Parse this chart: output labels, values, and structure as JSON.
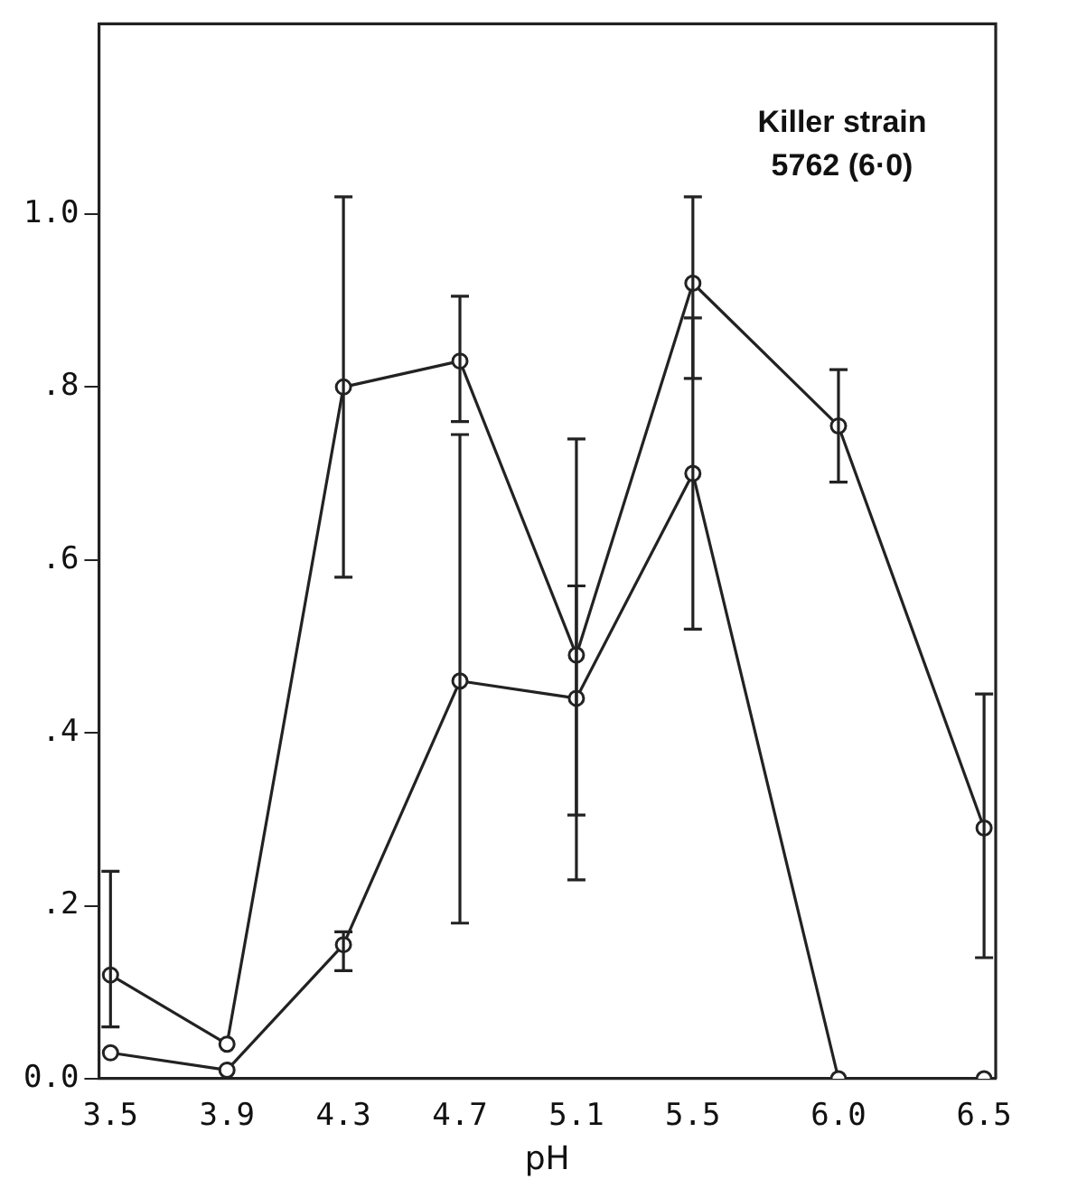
{
  "chart_data": {
    "type": "line",
    "xlabel": "pH",
    "annotations": [
      "Killer strain",
      "5762 (6·0)"
    ],
    "x": [
      3.5,
      3.9,
      4.3,
      4.7,
      5.1,
      5.5,
      6.0,
      6.5
    ],
    "xlim": [
      3.46,
      6.54
    ],
    "xticks": [
      3.5,
      3.9,
      4.3,
      4.7,
      5.1,
      5.5,
      {
        "value": 6.0,
        "label": "6.0"
      },
      6.5
    ],
    "ylim": [
      0,
      1.22
    ],
    "yticks": [
      {
        "value": 0,
        "label": "0.0"
      },
      {
        "value": 0.2,
        "label": ".2"
      },
      {
        "value": 0.4,
        "label": ".4"
      },
      {
        "value": 0.6,
        "label": ".6"
      },
      {
        "value": 0.8,
        "label": ".8"
      },
      {
        "value": 1.0,
        "label": "1.0"
      }
    ],
    "grid": false,
    "legend": false,
    "marker": "circle",
    "line_style": "solid",
    "series": [
      {
        "color": "#222222",
        "values": [
          0.12,
          0.04,
          0.8,
          0.83,
          0.49,
          0.92,
          0.755,
          0.29
        ],
        "errors": [
          [
            0.06,
            0.24
          ],
          null,
          [
            0.58,
            1.02
          ],
          [
            0.76,
            0.905
          ],
          [
            0.23,
            0.74
          ],
          [
            0.81,
            1.02
          ],
          [
            0.69,
            0.82
          ],
          [
            0.14,
            0.445
          ]
        ]
      },
      {
        "color": "#222222",
        "values": [
          0.03,
          0.01,
          0.155,
          0.46,
          0.44,
          0.7,
          0,
          0
        ],
        "errors": [
          null,
          null,
          [
            0.125,
            0.17
          ],
          [
            0.18,
            0.745
          ],
          [
            0.305,
            0.57
          ],
          [
            0.52,
            0.88
          ],
          null,
          null
        ]
      }
    ]
  }
}
